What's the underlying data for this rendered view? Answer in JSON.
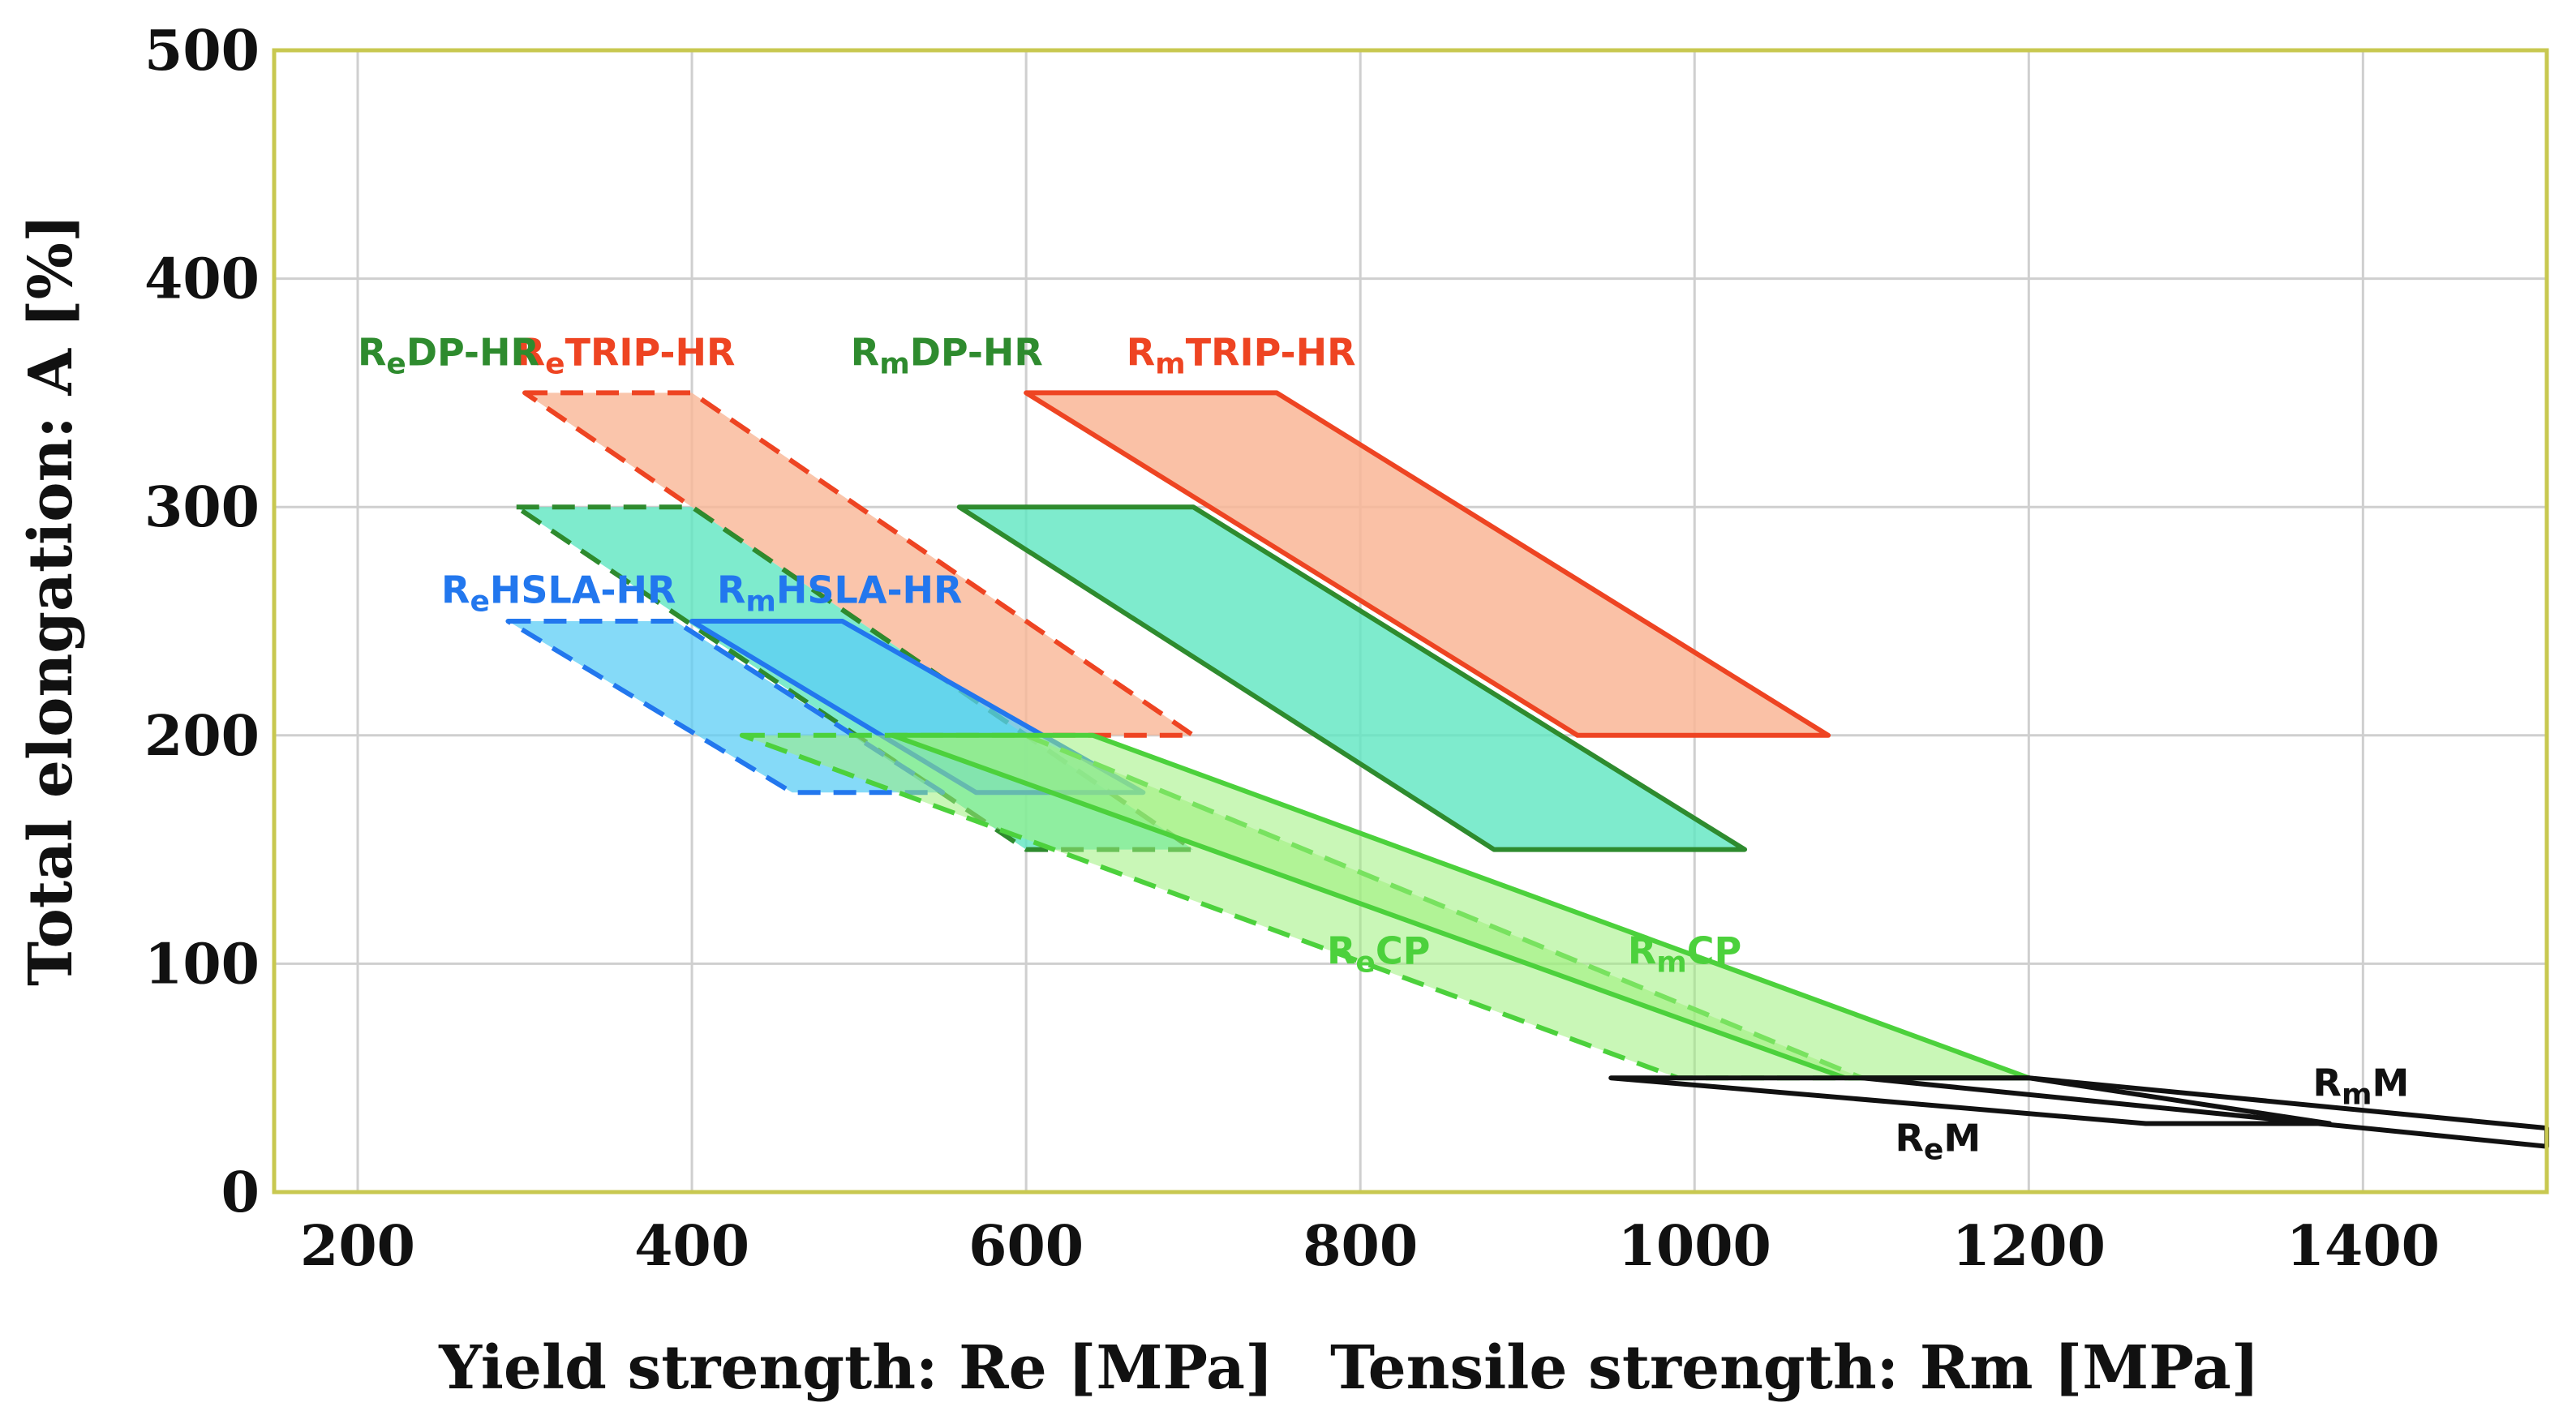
{
  "chart_data": {
    "type": "area",
    "title": "",
    "xlabel_re": "Yield strength: Re [MPa]",
    "xlabel_rm": "Tensile strength: Rm [MPa]",
    "ylabel": "Total elongation: A [%]",
    "xlim": [
      150,
      1510
    ],
    "ylim": [
      0,
      500
    ],
    "xticks": [
      200,
      400,
      600,
      800,
      1000,
      1200,
      1400
    ],
    "yticks": [
      0,
      100,
      200,
      300,
      400,
      500
    ],
    "grid": true,
    "colors": {
      "dp": "#2e8b2e",
      "dp_fill": "#5ee6c0",
      "trip": "#ee4422",
      "trip_fill": "#f9b696",
      "hsla": "#2277ee",
      "hsla_fill": "#5ccdf5",
      "cp": "#4cd13c",
      "cp_fill": "#9cf07c",
      "m": "#111111",
      "frame": "#c8c850",
      "grid": "#cfcfcf"
    },
    "regions": [
      {
        "id": "re-trip-hr",
        "steel": "TRIP-HR",
        "property": "Re",
        "prefix": "R",
        "sub": "e",
        "name": "TRIP-HR",
        "style": "dashed",
        "edge": "trip",
        "fill": "trip_fill",
        "opacity": 0.8,
        "points": [
          [
            300,
            350
          ],
          [
            400,
            350
          ],
          [
            700,
            200
          ],
          [
            600,
            200
          ]
        ],
        "label_at": [
          295,
          362
        ],
        "label_color": "trip"
      },
      {
        "id": "rm-trip-hr",
        "steel": "TRIP-HR",
        "property": "Rm",
        "prefix": "R",
        "sub": "m",
        "name": "TRIP-HR",
        "style": "solid",
        "edge": "trip",
        "fill": "trip_fill",
        "opacity": 0.85,
        "points": [
          [
            600,
            350
          ],
          [
            750,
            350
          ],
          [
            1080,
            200
          ],
          [
            930,
            200
          ]
        ],
        "label_at": [
          660,
          362
        ],
        "label_color": "trip"
      },
      {
        "id": "re-dp-hr",
        "steel": "DP-HR",
        "property": "Re",
        "prefix": "R",
        "sub": "e",
        "name": "DP-HR",
        "style": "dashed",
        "edge": "dp",
        "fill": "dp_fill",
        "opacity": 0.8,
        "points": [
          [
            295,
            300
          ],
          [
            400,
            300
          ],
          [
            700,
            150
          ],
          [
            600,
            150
          ]
        ],
        "label_at": [
          200,
          362
        ],
        "label_color": "dp"
      },
      {
        "id": "rm-dp-hr",
        "steel": "DP-HR",
        "property": "Rm",
        "prefix": "R",
        "sub": "m",
        "name": "DP-HR",
        "style": "solid",
        "edge": "dp",
        "fill": "dp_fill",
        "opacity": 0.8,
        "points": [
          [
            560,
            300
          ],
          [
            700,
            300
          ],
          [
            1030,
            150
          ],
          [
            880,
            150
          ]
        ],
        "label_at": [
          495,
          362
        ],
        "label_color": "dp"
      },
      {
        "id": "re-hsla-hr",
        "steel": "HSLA-HR",
        "property": "Re",
        "prefix": "R",
        "sub": "e",
        "name": "HSLA-HR",
        "style": "dashed",
        "edge": "hsla",
        "fill": "hsla_fill",
        "opacity": 0.75,
        "points": [
          [
            290,
            250
          ],
          [
            390,
            250
          ],
          [
            550,
            175
          ],
          [
            460,
            175
          ]
        ],
        "label_at": [
          250,
          258
        ],
        "label_color": "hsla"
      },
      {
        "id": "rm-hsla-hr",
        "steel": "HSLA-HR",
        "property": "Rm",
        "prefix": "R",
        "sub": "m",
        "name": "HSLA-HR",
        "style": "solid",
        "edge": "hsla",
        "fill": "hsla_fill",
        "opacity": 0.75,
        "points": [
          [
            400,
            250
          ],
          [
            490,
            250
          ],
          [
            670,
            175
          ],
          [
            570,
            175
          ]
        ],
        "label_at": [
          415,
          258
        ],
        "label_color": "hsla"
      },
      {
        "id": "re-cp",
        "steel": "CP",
        "property": "Re",
        "prefix": "R",
        "sub": "e",
        "name": "CP",
        "style": "dashed",
        "edge": "cp",
        "fill": "cp_fill",
        "opacity": 0.55,
        "points": [
          [
            430,
            200
          ],
          [
            600,
            200
          ],
          [
            1100,
            50
          ],
          [
            990,
            50
          ]
        ],
        "label_at": [
          780,
          100
        ],
        "label_color": "cp"
      },
      {
        "id": "rm-cp",
        "steel": "CP",
        "property": "Rm",
        "prefix": "R",
        "sub": "m",
        "name": "CP",
        "style": "solid",
        "edge": "cp",
        "fill": "cp_fill",
        "opacity": 0.55,
        "points": [
          [
            520,
            200
          ],
          [
            640,
            200
          ],
          [
            1200,
            50
          ],
          [
            1090,
            50
          ]
        ],
        "label_at": [
          960,
          100
        ],
        "label_color": "cp"
      },
      {
        "id": "re-m",
        "steel": "M",
        "property": "Re",
        "prefix": "R",
        "sub": "e",
        "name": "M",
        "style": "solid",
        "edge": "m",
        "fill": "none",
        "opacity": 1,
        "points": [
          [
            950,
            50
          ],
          [
            1200,
            50
          ],
          [
            1380,
            30
          ],
          [
            1270,
            30
          ]
        ],
        "label_at": [
          1120,
          18
        ],
        "label_color": "m"
      },
      {
        "id": "rm-m",
        "steel": "M",
        "property": "Rm",
        "prefix": "R",
        "sub": "m",
        "name": "M",
        "style": "solid",
        "edge": "m",
        "fill": "none",
        "opacity": 1,
        "points": [
          [
            1100,
            50
          ],
          [
            1200,
            50
          ],
          [
            1510,
            28
          ],
          [
            1510,
            20
          ]
        ],
        "label_at": [
          1370,
          42
        ],
        "label_color": "m"
      }
    ]
  }
}
